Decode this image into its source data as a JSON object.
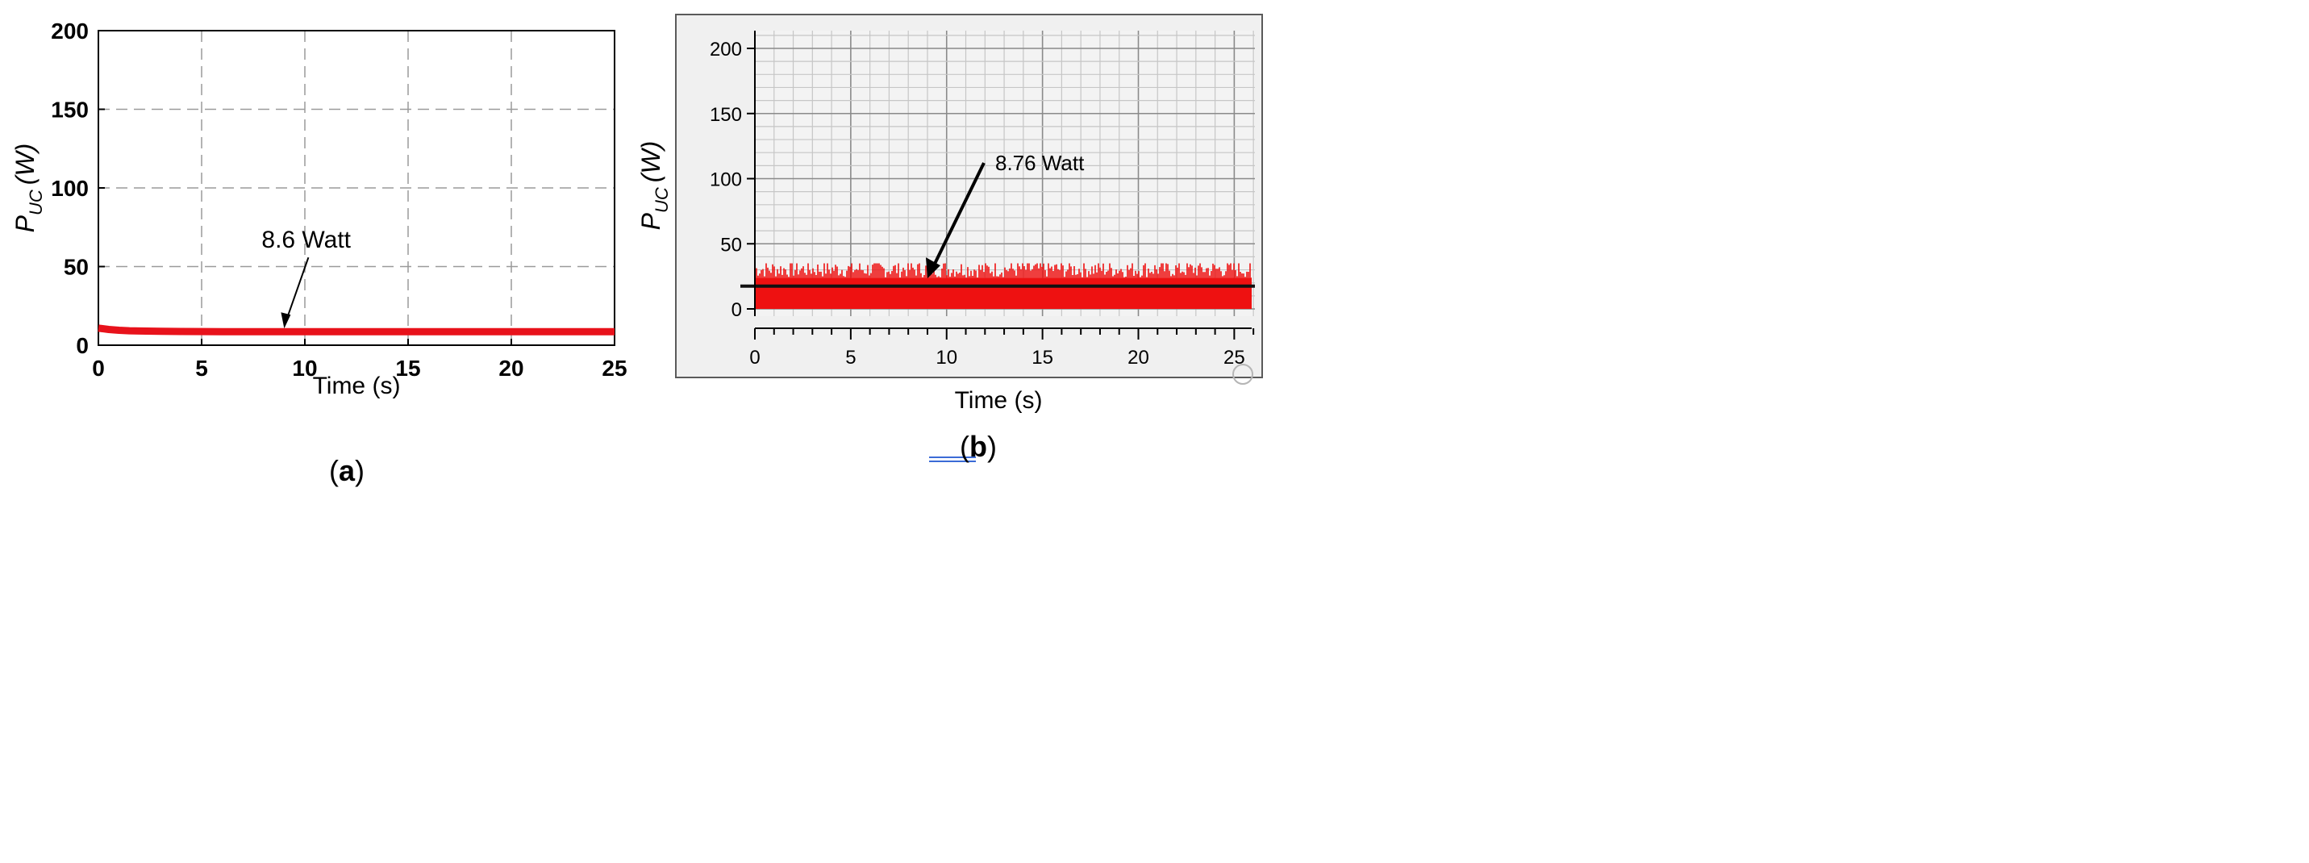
{
  "chart_data": [
    {
      "type": "line",
      "panel_label": "a",
      "xlabel": "Time (s)",
      "ylabel_main": "P",
      "ylabel_sub": "UC",
      "ylabel_unit": "(W)",
      "xlim": [
        0,
        25
      ],
      "ylim": [
        0,
        200
      ],
      "xticks": [
        "0",
        "5",
        "10",
        "15",
        "20",
        "25"
      ],
      "yticks": [
        "0",
        "50",
        "100",
        "150",
        "200"
      ],
      "grid": true,
      "series": [
        {
          "color": "#e8121b",
          "x": [
            0,
            0.2,
            0.5,
            1,
            1.5,
            2,
            3,
            4,
            6,
            10,
            15,
            20,
            25
          ],
          "y": [
            10.8,
            10.5,
            10.0,
            9.5,
            9.2,
            9.0,
            8.8,
            8.7,
            8.6,
            8.6,
            8.6,
            8.6,
            8.6
          ]
        }
      ],
      "annotation": {
        "text": "8.6 Watt",
        "x": 9,
        "y": 8.6
      }
    },
    {
      "type": "area",
      "panel_label": "b",
      "xlabel": "Time (s)",
      "ylabel_main": "P",
      "ylabel_sub": "UC",
      "ylabel_unit": "(W)",
      "xlim": [
        0,
        26
      ],
      "ylim": [
        0,
        210
      ],
      "xticks": [
        "0",
        "5",
        "10",
        "15",
        "20",
        "25"
      ],
      "yticks": [
        "0",
        "50",
        "100",
        "150",
        "200"
      ],
      "grid": true,
      "series": [
        {
          "color": "#ee1111",
          "min": 0,
          "max": 35,
          "typical": 30
        }
      ],
      "mean_line": {
        "color": "#111111",
        "y": 17.5
      },
      "annotation": {
        "text": "8.76 Watt",
        "x": 9,
        "y": 21
      }
    }
  ]
}
